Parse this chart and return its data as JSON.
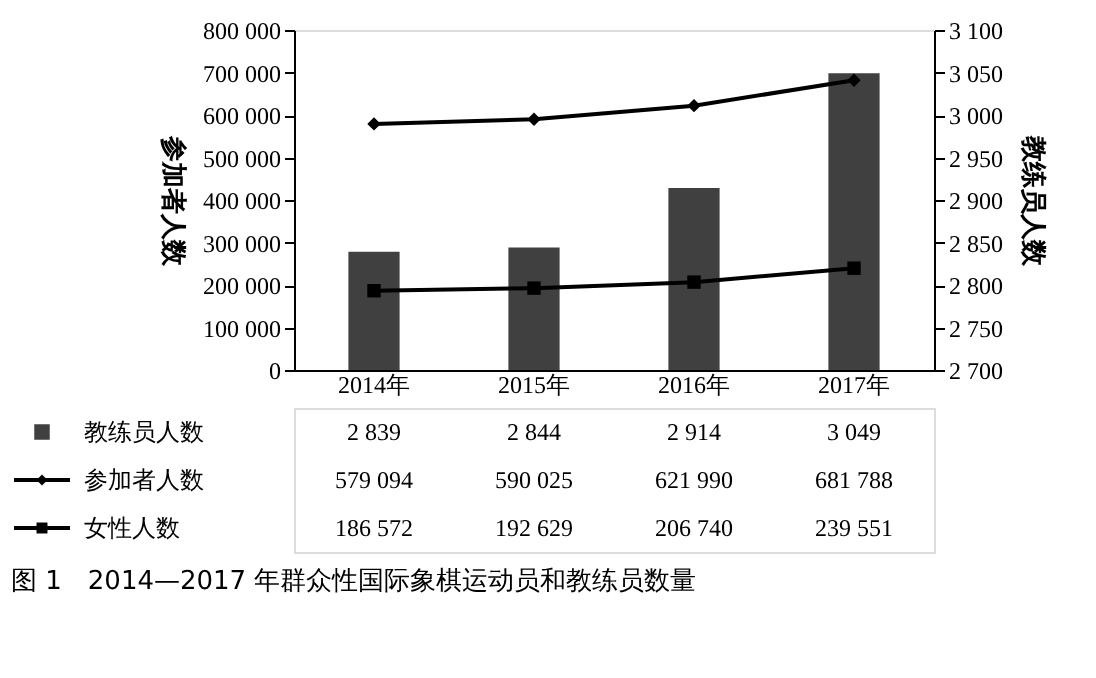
{
  "chart_data": {
    "type": "bar",
    "categories": [
      "2014年",
      "2015年",
      "2016年",
      "2017年"
    ],
    "series": [
      {
        "name": "教练员人数",
        "axis": "y2",
        "color": "#404040",
        "values": [
          2839,
          2844,
          2914,
          3049
        ],
        "value_labels": [
          "2 839",
          "2 844",
          "2 914",
          "3 049"
        ]
      },
      {
        "name": "参加者人数",
        "type": "line",
        "marker": "diamond",
        "color": "#000000",
        "values": [
          579094,
          590025,
          621990,
          681788
        ],
        "value_labels": [
          "579 094",
          "590 025",
          "621 990",
          "681 788"
        ]
      },
      {
        "name": "女性人数",
        "type": "line",
        "marker": "square",
        "color": "#000000",
        "values": [
          186572,
          192629,
          206740,
          239551
        ],
        "value_labels": [
          "186 572",
          "192 629",
          "206 740",
          "239 551"
        ]
      }
    ],
    "ylabel": "参加者人数",
    "y2label": "教练员人数",
    "ylim": [
      0,
      800000
    ],
    "yticks": [
      0,
      {
        "value": 100000,
        "label": "100 000"
      },
      {
        "value": 200000,
        "label": "200 000"
      },
      {
        "value": 300000,
        "label": "300 000"
      },
      {
        "value": 400000,
        "label": "400 000"
      },
      {
        "value": 500000,
        "label": "500 000"
      },
      {
        "value": 600000,
        "label": "600 000"
      },
      {
        "value": 700000,
        "label": "700 000"
      },
      {
        "value": 800000,
        "label": "800 000"
      }
    ],
    "y2lim": [
      2700,
      3100
    ],
    "y2ticks": [
      {
        "value": 2700,
        "label": "2 700"
      },
      {
        "value": 2750,
        "label": "2 750"
      },
      {
        "value": 2800,
        "label": "2 800"
      },
      {
        "value": 2850,
        "label": "2 850"
      },
      {
        "value": 2900,
        "label": "2 900"
      },
      {
        "value": 2950,
        "label": "2 950"
      },
      {
        "value": 3000,
        "label": "3 000"
      },
      {
        "value": 3050,
        "label": "3 050"
      },
      {
        "value": 3100,
        "label": "3 100"
      }
    ],
    "legend": "bottom",
    "annotations": [
      "图 1　2014—2017 年群众性国际象棋运动员和教练员数量"
    ]
  }
}
